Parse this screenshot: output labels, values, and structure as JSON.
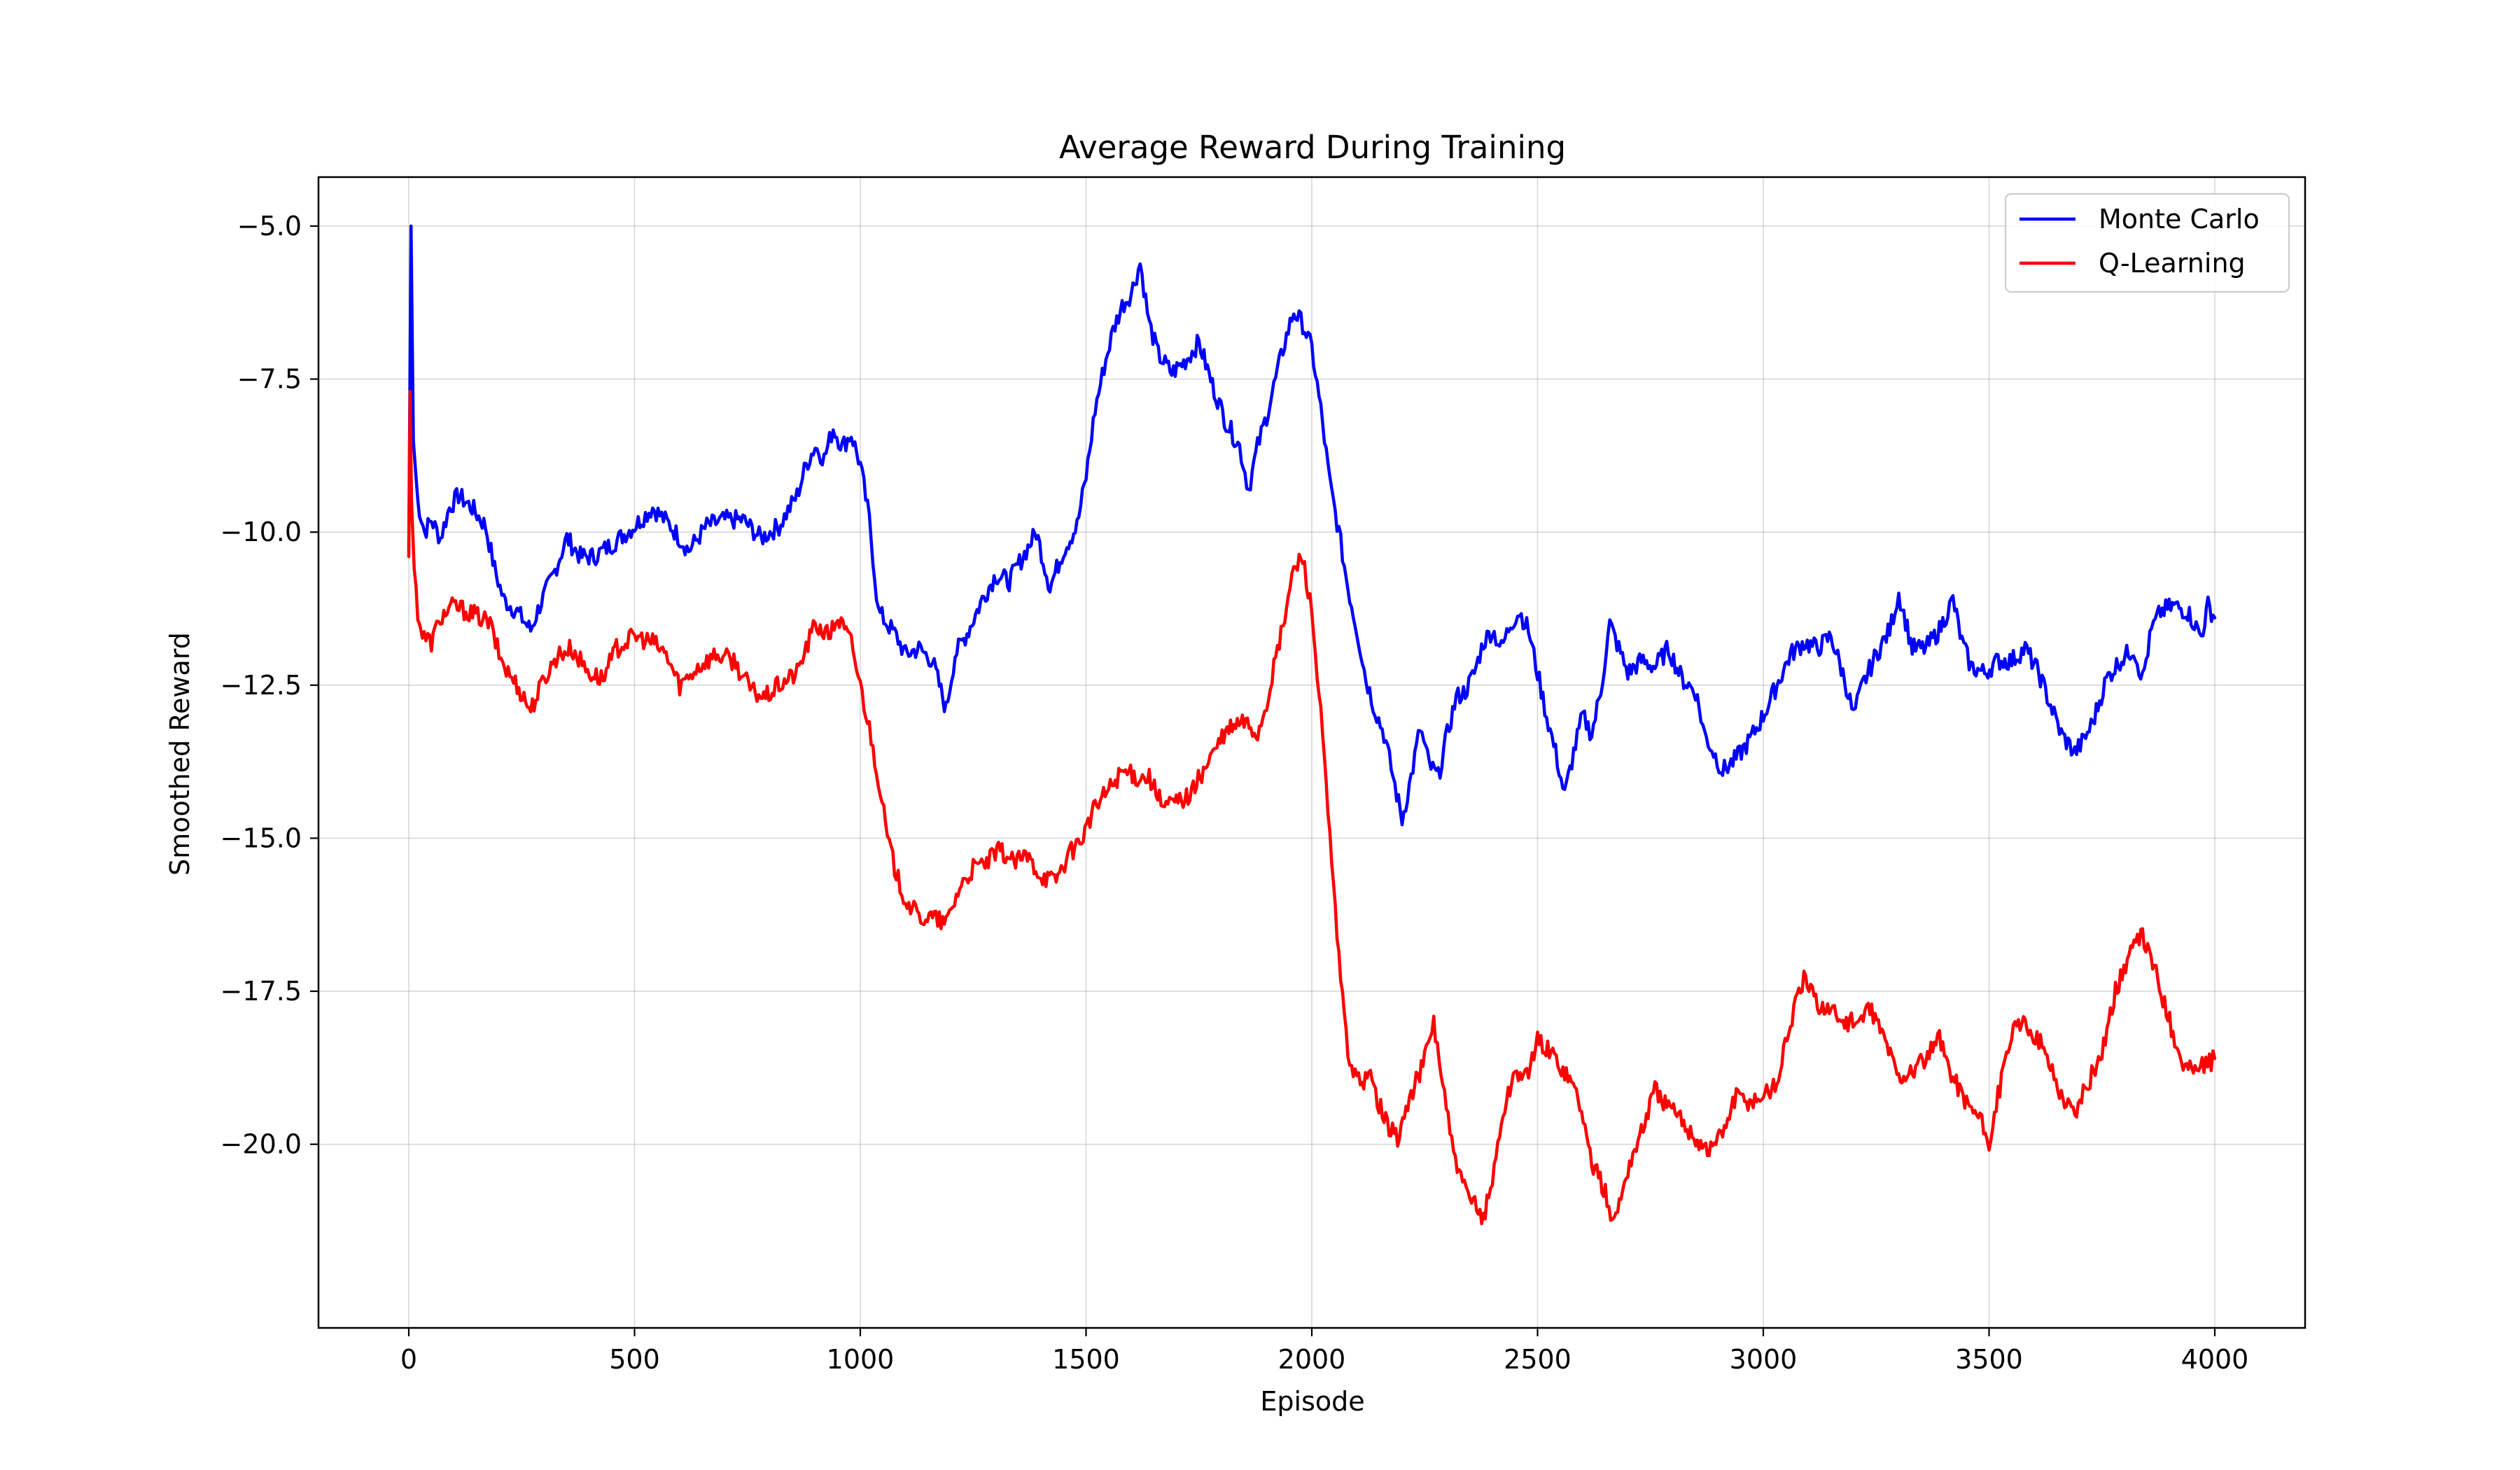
{
  "chart_data": {
    "type": "line",
    "title": "Average Reward During Training",
    "xlabel": "Episode",
    "ylabel": "Smoothed Reward",
    "xlim": [
      -200,
      4200
    ],
    "ylim": [
      -23.0,
      -4.2
    ],
    "xticks": [
      0,
      500,
      1000,
      1500,
      2000,
      2500,
      3000,
      3500,
      4000
    ],
    "xtick_labels": [
      "0",
      "500",
      "1000",
      "1500",
      "2000",
      "2500",
      "3000",
      "3500",
      "4000"
    ],
    "yticks": [
      -5.0,
      -7.5,
      -10.0,
      -12.5,
      -15.0,
      -17.5,
      -20.0
    ],
    "ytick_labels": [
      "−5.0",
      "−7.5",
      "−10.0",
      "−12.5",
      "−15.0",
      "−17.5",
      "−20.0"
    ],
    "grid": true,
    "legend_position": "top-right",
    "series": [
      {
        "name": "Monte Carlo",
        "color": "#0000ff",
        "points": [
          [
            0,
            -10.3
          ],
          [
            5,
            -5.0
          ],
          [
            10,
            -8.5
          ],
          [
            20,
            -9.5
          ],
          [
            35,
            -10.0
          ],
          [
            50,
            -9.8
          ],
          [
            70,
            -10.1
          ],
          [
            90,
            -9.6
          ],
          [
            110,
            -9.4
          ],
          [
            140,
            -9.6
          ],
          [
            170,
            -9.9
          ],
          [
            190,
            -10.6
          ],
          [
            210,
            -11.1
          ],
          [
            240,
            -11.3
          ],
          [
            270,
            -11.6
          ],
          [
            290,
            -11.2
          ],
          [
            320,
            -10.7
          ],
          [
            350,
            -10.1
          ],
          [
            380,
            -10.4
          ],
          [
            410,
            -10.4
          ],
          [
            450,
            -10.2
          ],
          [
            500,
            -9.9
          ],
          [
            540,
            -9.6
          ],
          [
            580,
            -9.9
          ],
          [
            620,
            -10.3
          ],
          [
            660,
            -9.9
          ],
          [
            700,
            -9.8
          ],
          [
            740,
            -9.8
          ],
          [
            780,
            -10.1
          ],
          [
            820,
            -9.9
          ],
          [
            860,
            -9.4
          ],
          [
            880,
            -8.9
          ],
          [
            900,
            -8.6
          ],
          [
            920,
            -8.8
          ],
          [
            940,
            -8.3
          ],
          [
            960,
            -8.6
          ],
          [
            980,
            -8.4
          ],
          [
            1000,
            -8.9
          ],
          [
            1020,
            -9.8
          ],
          [
            1040,
            -11.3
          ],
          [
            1060,
            -11.5
          ],
          [
            1080,
            -11.7
          ],
          [
            1100,
            -12.0
          ],
          [
            1130,
            -11.9
          ],
          [
            1160,
            -12.1
          ],
          [
            1190,
            -12.9
          ],
          [
            1210,
            -12.0
          ],
          [
            1240,
            -11.6
          ],
          [
            1270,
            -11.1
          ],
          [
            1300,
            -10.7
          ],
          [
            1330,
            -10.8
          ],
          [
            1360,
            -10.4
          ],
          [
            1390,
            -10.0
          ],
          [
            1420,
            -10.9
          ],
          [
            1450,
            -10.3
          ],
          [
            1480,
            -9.9
          ],
          [
            1500,
            -9.1
          ],
          [
            1520,
            -8.0
          ],
          [
            1540,
            -7.3
          ],
          [
            1560,
            -6.7
          ],
          [
            1580,
            -6.3
          ],
          [
            1600,
            -6.1
          ],
          [
            1620,
            -5.6
          ],
          [
            1640,
            -6.6
          ],
          [
            1660,
            -7.1
          ],
          [
            1690,
            -7.4
          ],
          [
            1720,
            -7.2
          ],
          [
            1750,
            -6.9
          ],
          [
            1780,
            -7.6
          ],
          [
            1810,
            -8.2
          ],
          [
            1840,
            -8.6
          ],
          [
            1860,
            -9.3
          ],
          [
            1880,
            -8.6
          ],
          [
            1900,
            -8.1
          ],
          [
            1920,
            -7.5
          ],
          [
            1940,
            -6.9
          ],
          [
            1960,
            -6.4
          ],
          [
            1980,
            -6.6
          ],
          [
            2000,
            -7.0
          ],
          [
            2020,
            -8.0
          ],
          [
            2040,
            -9.2
          ],
          [
            2060,
            -10.0
          ],
          [
            2080,
            -10.9
          ],
          [
            2100,
            -11.6
          ],
          [
            2120,
            -12.4
          ],
          [
            2140,
            -12.9
          ],
          [
            2160,
            -13.3
          ],
          [
            2180,
            -14.0
          ],
          [
            2200,
            -14.7
          ],
          [
            2220,
            -14.0
          ],
          [
            2240,
            -13.2
          ],
          [
            2260,
            -13.8
          ],
          [
            2280,
            -14.0
          ],
          [
            2300,
            -13.3
          ],
          [
            2320,
            -12.7
          ],
          [
            2340,
            -12.6
          ],
          [
            2360,
            -12.3
          ],
          [
            2380,
            -11.8
          ],
          [
            2400,
            -11.6
          ],
          [
            2420,
            -11.9
          ],
          [
            2440,
            -11.5
          ],
          [
            2460,
            -11.3
          ],
          [
            2480,
            -11.6
          ],
          [
            2500,
            -12.3
          ],
          [
            2520,
            -13.0
          ],
          [
            2540,
            -13.6
          ],
          [
            2560,
            -14.3
          ],
          [
            2580,
            -13.6
          ],
          [
            2600,
            -13.0
          ],
          [
            2620,
            -13.3
          ],
          [
            2640,
            -12.6
          ],
          [
            2660,
            -11.5
          ],
          [
            2680,
            -11.9
          ],
          [
            2700,
            -12.3
          ],
          [
            2730,
            -12.1
          ],
          [
            2760,
            -12.2
          ],
          [
            2790,
            -11.9
          ],
          [
            2820,
            -12.4
          ],
          [
            2850,
            -12.6
          ],
          [
            2870,
            -13.3
          ],
          [
            2890,
            -13.6
          ],
          [
            2910,
            -13.9
          ],
          [
            2940,
            -13.7
          ],
          [
            2970,
            -13.4
          ],
          [
            3000,
            -13.0
          ],
          [
            3030,
            -12.5
          ],
          [
            3060,
            -12.0
          ],
          [
            3090,
            -11.8
          ],
          [
            3120,
            -11.9
          ],
          [
            3150,
            -11.7
          ],
          [
            3180,
            -12.4
          ],
          [
            3200,
            -13.0
          ],
          [
            3220,
            -12.5
          ],
          [
            3250,
            -12.0
          ],
          [
            3280,
            -11.6
          ],
          [
            3300,
            -11.0
          ],
          [
            3330,
            -11.9
          ],
          [
            3360,
            -11.9
          ],
          [
            3390,
            -11.6
          ],
          [
            3420,
            -11.1
          ],
          [
            3440,
            -11.8
          ],
          [
            3460,
            -12.2
          ],
          [
            3490,
            -12.3
          ],
          [
            3520,
            -12.1
          ],
          [
            3550,
            -12.1
          ],
          [
            3580,
            -11.9
          ],
          [
            3610,
            -12.3
          ],
          [
            3640,
            -12.9
          ],
          [
            3660,
            -13.3
          ],
          [
            3690,
            -13.6
          ],
          [
            3710,
            -13.4
          ],
          [
            3730,
            -13.1
          ],
          [
            3760,
            -12.4
          ],
          [
            3790,
            -12.1
          ],
          [
            3820,
            -11.9
          ],
          [
            3840,
            -12.4
          ],
          [
            3860,
            -11.6
          ],
          [
            3880,
            -11.3
          ],
          [
            3910,
            -11.2
          ],
          [
            3940,
            -11.3
          ],
          [
            3970,
            -11.7
          ],
          [
            3985,
            -11.2
          ],
          [
            4000,
            -11.4
          ]
        ]
      },
      {
        "name": "Q-Learning",
        "color": "#ff0000",
        "points": [
          [
            0,
            -10.4
          ],
          [
            3,
            -7.7
          ],
          [
            6,
            -9.5
          ],
          [
            12,
            -10.6
          ],
          [
            20,
            -11.3
          ],
          [
            30,
            -11.7
          ],
          [
            50,
            -11.8
          ],
          [
            70,
            -11.4
          ],
          [
            100,
            -11.2
          ],
          [
            130,
            -11.3
          ],
          [
            160,
            -11.4
          ],
          [
            180,
            -11.5
          ],
          [
            200,
            -12.0
          ],
          [
            220,
            -12.3
          ],
          [
            240,
            -12.5
          ],
          [
            270,
            -12.9
          ],
          [
            300,
            -12.4
          ],
          [
            330,
            -12.0
          ],
          [
            360,
            -11.9
          ],
          [
            400,
            -12.3
          ],
          [
            430,
            -12.4
          ],
          [
            460,
            -11.9
          ],
          [
            500,
            -11.7
          ],
          [
            540,
            -11.8
          ],
          [
            570,
            -12.0
          ],
          [
            600,
            -12.5
          ],
          [
            640,
            -12.2
          ],
          [
            680,
            -12.0
          ],
          [
            720,
            -12.1
          ],
          [
            760,
            -12.6
          ],
          [
            790,
            -12.7
          ],
          [
            820,
            -12.5
          ],
          [
            860,
            -12.3
          ],
          [
            880,
            -11.9
          ],
          [
            900,
            -11.5
          ],
          [
            930,
            -11.7
          ],
          [
            950,
            -11.4
          ],
          [
            980,
            -11.8
          ],
          [
            1000,
            -12.5
          ],
          [
            1020,
            -13.2
          ],
          [
            1040,
            -14.0
          ],
          [
            1060,
            -15.0
          ],
          [
            1080,
            -15.6
          ],
          [
            1100,
            -16.0
          ],
          [
            1130,
            -16.3
          ],
          [
            1160,
            -16.3
          ],
          [
            1190,
            -16.4
          ],
          [
            1220,
            -15.8
          ],
          [
            1250,
            -15.5
          ],
          [
            1280,
            -15.4
          ],
          [
            1310,
            -15.2
          ],
          [
            1340,
            -15.4
          ],
          [
            1370,
            -15.3
          ],
          [
            1400,
            -15.6
          ],
          [
            1430,
            -15.7
          ],
          [
            1460,
            -15.3
          ],
          [
            1490,
            -15.0
          ],
          [
            1520,
            -14.5
          ],
          [
            1550,
            -14.2
          ],
          [
            1580,
            -13.9
          ],
          [
            1610,
            -14.0
          ],
          [
            1640,
            -14.0
          ],
          [
            1670,
            -14.5
          ],
          [
            1700,
            -14.4
          ],
          [
            1730,
            -14.3
          ],
          [
            1760,
            -13.9
          ],
          [
            1790,
            -13.5
          ],
          [
            1820,
            -13.2
          ],
          [
            1850,
            -13.1
          ],
          [
            1880,
            -13.3
          ],
          [
            1900,
            -12.8
          ],
          [
            1920,
            -12.1
          ],
          [
            1940,
            -11.4
          ],
          [
            1960,
            -10.6
          ],
          [
            1980,
            -10.4
          ],
          [
            2000,
            -11.3
          ],
          [
            2020,
            -13.0
          ],
          [
            2040,
            -15.0
          ],
          [
            2060,
            -17.0
          ],
          [
            2080,
            -18.5
          ],
          [
            2100,
            -19.0
          ],
          [
            2130,
            -18.9
          ],
          [
            2160,
            -19.6
          ],
          [
            2190,
            -19.9
          ],
          [
            2220,
            -19.2
          ],
          [
            2250,
            -18.6
          ],
          [
            2270,
            -18.0
          ],
          [
            2290,
            -19.0
          ],
          [
            2310,
            -20.0
          ],
          [
            2330,
            -20.6
          ],
          [
            2350,
            -20.9
          ],
          [
            2380,
            -21.2
          ],
          [
            2400,
            -20.6
          ],
          [
            2420,
            -19.6
          ],
          [
            2450,
            -18.8
          ],
          [
            2480,
            -18.9
          ],
          [
            2500,
            -18.3
          ],
          [
            2530,
            -18.5
          ],
          [
            2560,
            -18.8
          ],
          [
            2590,
            -19.2
          ],
          [
            2620,
            -20.3
          ],
          [
            2650,
            -20.8
          ],
          [
            2670,
            -21.3
          ],
          [
            2700,
            -20.4
          ],
          [
            2730,
            -19.8
          ],
          [
            2760,
            -19.1
          ],
          [
            2790,
            -19.4
          ],
          [
            2820,
            -19.6
          ],
          [
            2850,
            -19.9
          ],
          [
            2880,
            -20.1
          ],
          [
            2910,
            -19.8
          ],
          [
            2940,
            -19.2
          ],
          [
            2970,
            -19.3
          ],
          [
            3000,
            -19.2
          ],
          [
            3030,
            -19.0
          ],
          [
            3060,
            -18.0
          ],
          [
            3090,
            -17.3
          ],
          [
            3120,
            -17.7
          ],
          [
            3150,
            -17.8
          ],
          [
            3180,
            -18.0
          ],
          [
            3210,
            -18.0
          ],
          [
            3240,
            -17.8
          ],
          [
            3270,
            -18.3
          ],
          [
            3300,
            -18.9
          ],
          [
            3330,
            -18.8
          ],
          [
            3360,
            -18.6
          ],
          [
            3390,
            -18.3
          ],
          [
            3420,
            -18.9
          ],
          [
            3450,
            -19.3
          ],
          [
            3480,
            -19.6
          ],
          [
            3500,
            -20.0
          ],
          [
            3520,
            -19.2
          ],
          [
            3550,
            -18.2
          ],
          [
            3580,
            -18.0
          ],
          [
            3610,
            -18.3
          ],
          [
            3640,
            -18.8
          ],
          [
            3660,
            -19.2
          ],
          [
            3690,
            -19.5
          ],
          [
            3720,
            -19.0
          ],
          [
            3750,
            -18.5
          ],
          [
            3780,
            -17.5
          ],
          [
            3810,
            -16.9
          ],
          [
            3840,
            -16.6
          ],
          [
            3870,
            -17.2
          ],
          [
            3900,
            -18.0
          ],
          [
            3930,
            -18.7
          ],
          [
            3960,
            -18.8
          ],
          [
            3980,
            -18.7
          ],
          [
            4000,
            -18.6
          ]
        ]
      }
    ]
  }
}
